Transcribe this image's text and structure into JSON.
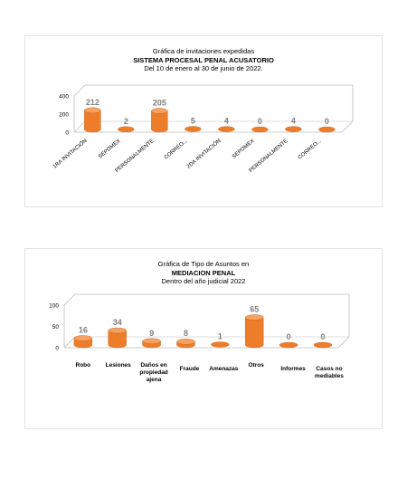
{
  "chart1": {
    "title_line1": "Gráfica de invitaciones expedidas",
    "title_line2": "SISTEMA PROCESAL PENAL ACUSATORIO",
    "title_line3": "Del  10  de enero al 30 de junio de 2022."
  },
  "chart2": {
    "title_line1": "Gráfica de Tipo de Asuntos en",
    "title_line2": "MEDIACION PENAL",
    "title_line3": "Dentro del año judicial 2022"
  },
  "colors": {
    "bar_body": "#ee7d2a",
    "bar_top": "#f4a261",
    "label_gray": "#7f7f7f",
    "axis_line": "#bdbdbd"
  },
  "chart_data": [
    {
      "type": "bar",
      "title": "Gráfica de invitaciones expedidas / SISTEMA PROCESAL PENAL ACUSATORIO / Del  10  de enero al 30 de junio de 2022.",
      "categories": [
        "1RA INVITACIÓN",
        "SEPOMEX",
        "PERSONALMENTE",
        "CORREO...",
        "2DA INVITACIÓN",
        "SEPOMEX",
        "PERSONALMENTE",
        "CORREO..."
      ],
      "values": [
        212,
        2,
        205,
        5,
        4,
        0,
        4,
        0
      ],
      "yticks": [
        "0",
        "200",
        "400"
      ],
      "ylim": [
        0,
        400
      ],
      "grid": false,
      "style": "3d-cylinder"
    },
    {
      "type": "bar",
      "title": "Gráfica de Tipo de Asuntos en / MEDIACION PENAL / Dentro del año judicial 2022",
      "categories": [
        "Robo",
        "Lesiones",
        "Daños en propiedad ajena",
        "Fraude",
        "Amenazas",
        "Otros",
        "Informes",
        "Casos no mediables"
      ],
      "values": [
        16,
        34,
        9,
        8,
        1,
        65,
        0,
        0
      ],
      "yticks": [
        "0",
        "50",
        "100"
      ],
      "ylim": [
        0,
        100
      ],
      "grid": false,
      "style": "3d-cylinder"
    }
  ]
}
